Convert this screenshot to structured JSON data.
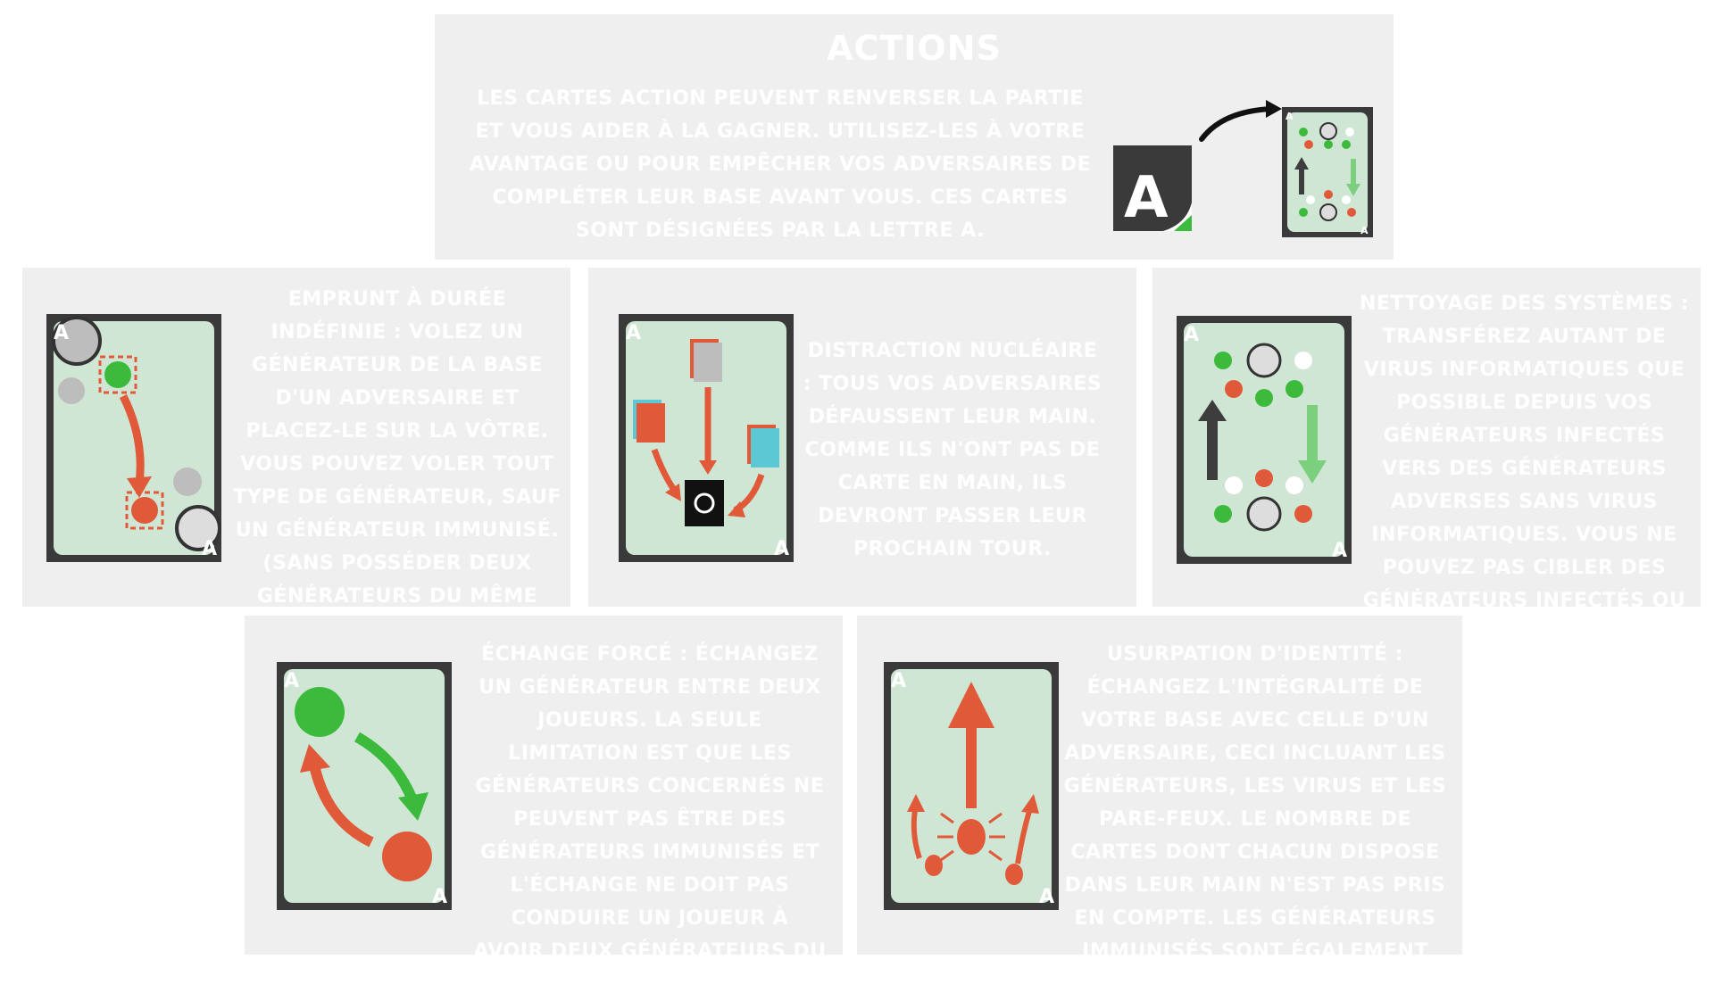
{
  "header": {
    "title": "ACTIONS",
    "description": "Les cartes action peuvent renverser la partie et vous aider à la gagner. Utilisez-les à votre avantage ou pour empêcher vos adversaires de compléter leur base avant vous. Ces cartes sont désignées par la lettre A.",
    "card_letter": "A"
  },
  "cards": [
    {
      "id": "emprunt",
      "text": "Emprunt à durée indéfinie : Volez un générateur de la base d'un adversaire et placez-le sur la vôtre. Vous pouvez voler tout type de générateur, sauf un générateur immunisé. (Sans posséder deux générateurs du même type)."
    },
    {
      "id": "distraction",
      "text": "Distraction nucléaire : Tous vos adversaires défaussent leur main. Comme ils n'ont pas de carte en main, ils devront passer leur prochain tour."
    },
    {
      "id": "nettoyage",
      "text": "Nettoyage des systèmes : Transférez autant de virus informatiques que possible depuis vos générateurs infectés vers des générateurs adverses sans virus informatiques. Vous ne pouvez pas cibler des générateurs infectés ou protégés."
    },
    {
      "id": "echange",
      "text": "Échange forcé : Échangez un générateur entre deux joueurs. La seule limitation est que les générateurs concernés ne peuvent pas être des générateurs immunisés et l'échange ne doit pas conduire un joueur à avoir deux générateurs du même type."
    },
    {
      "id": "usurpation",
      "text": "Usurpation d'identité : Échangez l'intégralité de votre base avec celle d'un adversaire, ceci incluant les générateurs, les virus et les pare-feux. Le nombre de cartes dont chacun dispose dans leur main n'est pas pris en compte. Les générateurs immunisés sont également échangés."
    }
  ],
  "colors": {
    "panel": "#efefef",
    "card_bg": "#cfe6d5",
    "card_frame": "#3a3a3a",
    "green": "#3cba3c",
    "red": "#e05a3a",
    "dark_arrow": "#3d3d3d",
    "teal": "#5bc8d4"
  }
}
